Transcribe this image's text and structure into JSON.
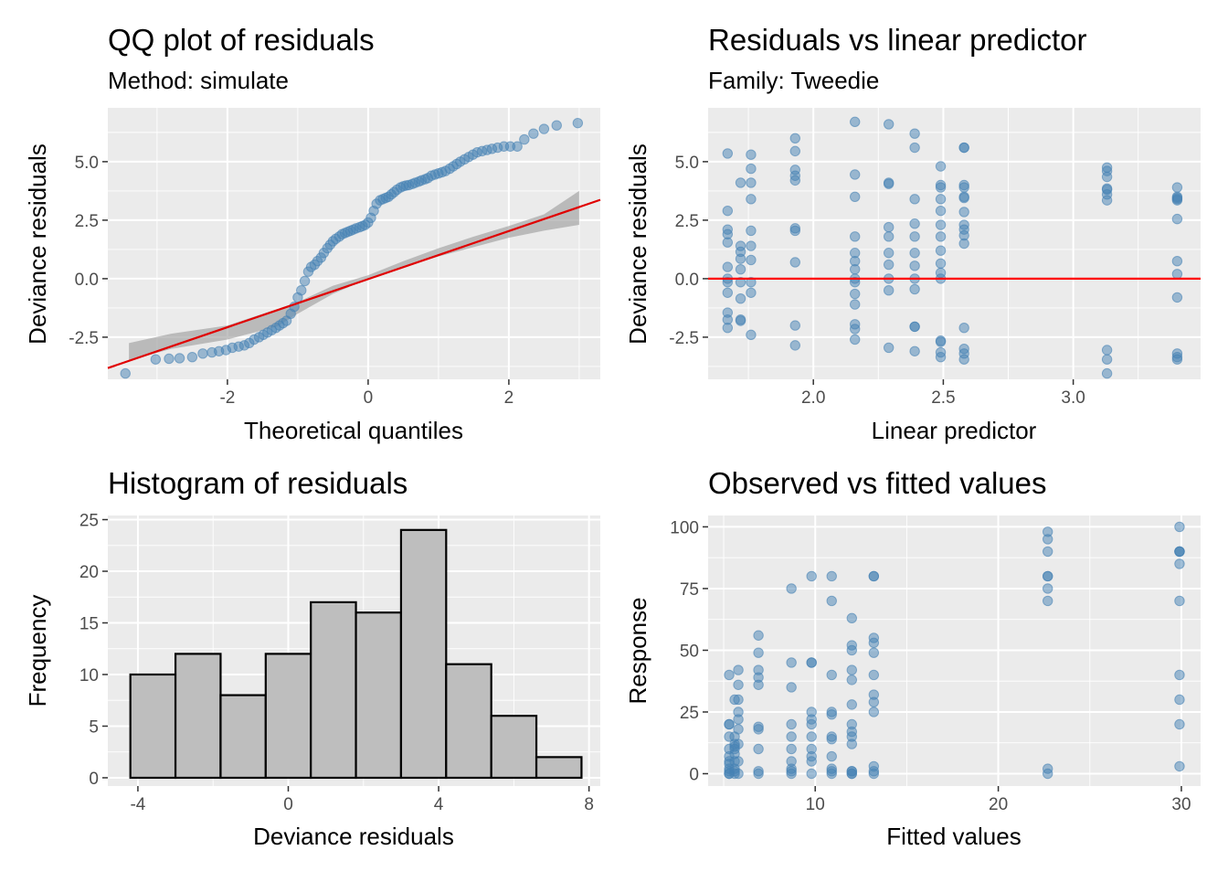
{
  "chart_data": [
    {
      "type": "scatter",
      "id": "qq",
      "title": "QQ plot of residuals",
      "subtitle": "Method: simulate",
      "xlabel": "Theoretical quantiles",
      "ylabel": "Deviance residuals",
      "xlim": [
        -3.7,
        3.3
      ],
      "ylim": [
        -4.3,
        7.3
      ],
      "xticks": [
        -2,
        0,
        2
      ],
      "xtick_labels": [
        "-2",
        "0",
        "2"
      ],
      "yticks": [
        -2.5,
        0,
        2.5,
        5
      ],
      "ytick_labels": [
        "-2.5",
        "0.0",
        "2.5",
        "5.0"
      ],
      "grid": true,
      "reference_line": {
        "x": [
          -3.7,
          3.3
        ],
        "y": [
          -3.82,
          3.37
        ],
        "color": "#e00000"
      },
      "band": {
        "x": [
          -3.4,
          -2.8,
          -2.0,
          -1.3,
          -1.0,
          -0.5,
          0.0,
          0.5,
          1.0,
          1.5,
          2.0,
          2.5,
          3.0
        ],
        "lower": [
          -3.5,
          -3.0,
          -2.6,
          -2.05,
          -1.5,
          -0.65,
          0.0,
          0.5,
          0.95,
          1.35,
          1.75,
          2.05,
          2.3
        ],
        "upper": [
          -2.75,
          -2.35,
          -2.0,
          -1.3,
          -1.0,
          -0.3,
          0.15,
          0.75,
          1.3,
          1.8,
          2.25,
          2.75,
          3.75
        ]
      },
      "series": [
        {
          "color": "#4682b4",
          "x": [
            -3.45,
            -3.02,
            -2.83,
            -2.68,
            -2.5,
            -2.35,
            -2.22,
            -2.12,
            -2.02,
            -1.93,
            -1.84,
            -1.76,
            -1.69,
            -1.62,
            -1.55,
            -1.49,
            -1.43,
            -1.37,
            -1.31,
            -1.26,
            -1.21,
            -1.16,
            -1.1,
            -1.05,
            -1.0,
            -0.95,
            -0.9,
            -0.85,
            -0.81,
            -0.76,
            -0.72,
            -0.67,
            -0.63,
            -0.58,
            -0.54,
            -0.5,
            -0.46,
            -0.41,
            -0.37,
            -0.33,
            -0.29,
            -0.25,
            -0.21,
            -0.17,
            -0.12,
            -0.08,
            -0.04,
            0.0,
            0.04,
            0.08,
            0.12,
            0.17,
            0.21,
            0.25,
            0.29,
            0.33,
            0.37,
            0.41,
            0.46,
            0.5,
            0.54,
            0.58,
            0.63,
            0.67,
            0.72,
            0.76,
            0.81,
            0.85,
            0.9,
            0.95,
            1.0,
            1.05,
            1.1,
            1.16,
            1.21,
            1.26,
            1.31,
            1.37,
            1.43,
            1.49,
            1.55,
            1.62,
            1.69,
            1.76,
            1.84,
            1.93,
            2.02,
            2.12,
            2.22,
            2.35,
            2.5,
            2.68,
            2.98
          ],
          "y": [
            -4.05,
            -3.45,
            -3.42,
            -3.4,
            -3.35,
            -3.2,
            -3.15,
            -3.1,
            -3.05,
            -2.95,
            -2.9,
            -2.85,
            -2.75,
            -2.6,
            -2.5,
            -2.4,
            -2.3,
            -2.2,
            -2.1,
            -2.0,
            -1.9,
            -1.8,
            -1.5,
            -1.2,
            -0.8,
            -0.5,
            -0.1,
            0.3,
            0.5,
            0.6,
            0.75,
            0.9,
            1.1,
            1.3,
            1.45,
            1.6,
            1.7,
            1.8,
            1.9,
            1.95,
            2.0,
            2.05,
            2.1,
            2.15,
            2.2,
            2.25,
            2.3,
            2.4,
            2.6,
            2.9,
            3.2,
            3.35,
            3.4,
            3.45,
            3.5,
            3.6,
            3.7,
            3.8,
            3.9,
            3.95,
            3.98,
            4.0,
            4.05,
            4.1,
            4.15,
            4.2,
            4.25,
            4.3,
            4.4,
            4.45,
            4.5,
            4.55,
            4.6,
            4.7,
            4.8,
            4.9,
            5.0,
            5.1,
            5.2,
            5.3,
            5.4,
            5.45,
            5.5,
            5.55,
            5.6,
            5.65,
            5.65,
            5.65,
            5.95,
            6.2,
            6.4,
            6.55,
            6.65
          ]
        }
      ]
    },
    {
      "type": "scatter",
      "id": "rvl",
      "title": "Residuals vs linear predictor",
      "subtitle": "Family: Tweedie",
      "xlabel": "Linear predictor",
      "ylabel": "Deviance residuals",
      "xlim": [
        1.595,
        3.49
      ],
      "ylim": [
        -4.3,
        7.3
      ],
      "xticks": [
        2.0,
        2.5,
        3.0
      ],
      "xtick_labels": [
        "2.0",
        "2.5",
        "3.0"
      ],
      "yticks": [
        -2.5,
        0,
        2.5,
        5
      ],
      "ytick_labels": [
        "-2.5",
        "0.0",
        "2.5",
        "5.0"
      ],
      "grid": true,
      "reference_line": {
        "y": 0,
        "color": "#ff0000"
      },
      "series": [
        {
          "color": "#4682b4",
          "x": [
            1.67,
            1.67,
            1.67,
            1.67,
            1.67,
            1.67,
            1.67,
            1.67,
            1.67,
            1.67,
            1.67,
            1.67,
            1.72,
            1.72,
            1.72,
            1.72,
            1.72,
            1.72,
            1.72,
            1.72,
            1.72,
            1.76,
            1.76,
            1.76,
            1.76,
            1.76,
            1.76,
            1.76,
            1.76,
            1.76,
            1.76,
            1.93,
            1.93,
            1.93,
            1.93,
            1.93,
            1.93,
            1.93,
            1.93,
            1.93,
            1.93,
            2.16,
            2.16,
            2.16,
            2.16,
            2.16,
            2.16,
            2.16,
            2.16,
            2.16,
            2.16,
            2.16,
            2.16,
            2.16,
            2.16,
            2.29,
            2.29,
            2.29,
            2.29,
            2.29,
            2.29,
            2.29,
            2.29,
            2.29,
            2.29,
            2.39,
            2.39,
            2.39,
            2.39,
            2.39,
            2.39,
            2.39,
            2.39,
            2.39,
            2.39,
            2.39,
            2.39,
            2.49,
            2.49,
            2.49,
            2.49,
            2.49,
            2.49,
            2.49,
            2.49,
            2.49,
            2.49,
            2.49,
            2.49,
            2.49,
            2.49,
            2.49,
            2.58,
            2.58,
            2.58,
            2.58,
            2.58,
            2.58,
            2.58,
            2.58,
            2.58,
            2.58,
            2.58,
            2.58,
            2.58,
            2.58,
            2.58,
            3.13,
            3.13,
            3.13,
            3.13,
            3.13,
            3.13,
            3.13,
            3.13,
            3.13,
            3.13,
            3.4,
            3.4,
            3.4,
            3.4,
            3.4,
            3.4,
            3.4,
            3.4,
            3.4,
            3.4,
            3.4,
            3.4
          ],
          "y": [
            5.35,
            2.9,
            2.1,
            1.9,
            1.55,
            0.5,
            0.0,
            -0.15,
            -0.6,
            -1.45,
            -1.75,
            -2.1,
            4.1,
            1.4,
            1.15,
            0.85,
            0.4,
            -0.15,
            -0.85,
            -1.75,
            -1.8,
            5.3,
            4.7,
            4.1,
            3.4,
            2.05,
            1.4,
            0.8,
            -0.15,
            -0.6,
            -2.4,
            6.0,
            5.45,
            4.65,
            4.4,
            4.2,
            2.15,
            2.05,
            0.7,
            -2.0,
            -2.85,
            6.7,
            4.45,
            3.5,
            1.8,
            1.1,
            0.75,
            0.4,
            0.0,
            -0.15,
            -0.65,
            -1.1,
            -1.95,
            -2.15,
            -2.6,
            6.6,
            4.05,
            4.1,
            2.2,
            1.8,
            1.1,
            0.6,
            0.0,
            -0.5,
            -2.95,
            6.2,
            5.6,
            3.4,
            2.35,
            1.8,
            1.1,
            0.55,
            0.0,
            -0.45,
            -2.05,
            -2.05,
            -3.1,
            4.8,
            4.0,
            3.9,
            3.4,
            2.9,
            2.3,
            1.8,
            1.2,
            0.65,
            0.25,
            0.0,
            -2.65,
            -2.7,
            -3.15,
            -3.35,
            5.6,
            5.6,
            4.0,
            3.9,
            3.5,
            3.45,
            2.85,
            2.3,
            2.1,
            1.85,
            1.5,
            -2.1,
            -3.0,
            -3.2,
            -3.45,
            4.75,
            4.6,
            4.35,
            3.85,
            3.8,
            3.6,
            3.35,
            -3.05,
            -3.45,
            -4.05,
            3.9,
            3.5,
            3.45,
            3.4,
            3.35,
            2.55,
            0.75,
            0.2,
            -0.8,
            -3.2,
            -3.35,
            -3.45
          ]
        }
      ]
    },
    {
      "type": "bar",
      "id": "hist",
      "title": "Histogram of residuals",
      "xlabel": "Deviance residuals",
      "ylabel": "Frequency",
      "bin_edges": [
        -4.2,
        -3.0,
        -1.8,
        -0.6,
        0.6,
        1.8,
        3.0,
        4.2,
        5.4,
        6.6,
        7.8
      ],
      "values": [
        10,
        12,
        8,
        12,
        17,
        16,
        24,
        11,
        6,
        2
      ],
      "xlim": [
        -4.8,
        8.3
      ],
      "ylim": [
        -0.8,
        25.4
      ],
      "xticks": [
        -4,
        0,
        4,
        8
      ],
      "xtick_labels": [
        "-4",
        "0",
        "4",
        "8"
      ],
      "yticks": [
        0,
        5,
        10,
        15,
        20,
        25
      ],
      "ytick_labels": [
        "0",
        "5",
        "10",
        "15",
        "20",
        "25"
      ],
      "grid": true,
      "bar_fill": "#bebebe",
      "bar_edge": "#000000"
    },
    {
      "type": "scatter",
      "id": "ovf",
      "title": "Observed vs fitted values",
      "xlabel": "Fitted values",
      "ylabel": "Response",
      "xlim": [
        4.15,
        31.05
      ],
      "ylim": [
        -5,
        104.6
      ],
      "xticks": [
        10,
        20,
        30
      ],
      "xtick_labels": [
        "10",
        "20",
        "30"
      ],
      "yticks": [
        0,
        25,
        50,
        75,
        100
      ],
      "ytick_labels": [
        "0",
        "25",
        "50",
        "75",
        "100"
      ],
      "grid": true,
      "series": [
        {
          "color": "#4682b4",
          "x": [
            5.3,
            5.3,
            5.3,
            5.3,
            5.3,
            5.3,
            5.3,
            5.3,
            5.3,
            5.3,
            5.3,
            5.3,
            5.6,
            5.6,
            5.6,
            5.6,
            5.6,
            5.6,
            5.6,
            5.6,
            5.6,
            5.6,
            5.8,
            5.8,
            5.8,
            5.8,
            5.8,
            5.8,
            5.8,
            5.8,
            5.8,
            6.9,
            6.9,
            6.9,
            6.9,
            6.9,
            6.9,
            6.9,
            6.9,
            6.9,
            6.9,
            8.7,
            8.7,
            8.7,
            8.7,
            8.7,
            8.7,
            8.7,
            8.7,
            8.7,
            8.7,
            9.8,
            9.8,
            9.8,
            9.8,
            9.8,
            9.8,
            9.8,
            9.8,
            9.8,
            9.8,
            9.8,
            10.9,
            10.9,
            10.9,
            10.9,
            10.9,
            10.9,
            10.9,
            10.9,
            10.9,
            10.9,
            10.9,
            12.0,
            12.0,
            12.0,
            12.0,
            12.0,
            12.0,
            12.0,
            12.0,
            12.0,
            12.0,
            12.0,
            12.0,
            12.0,
            12.0,
            13.2,
            13.2,
            13.2,
            13.2,
            13.2,
            13.2,
            13.2,
            13.2,
            13.2,
            13.2,
            13.2,
            13.2,
            22.7,
            22.7,
            22.7,
            22.7,
            22.7,
            22.7,
            22.7,
            22.7,
            22.7,
            29.9,
            29.9,
            29.9,
            29.9,
            29.9,
            29.9,
            29.9,
            29.9,
            29.9,
            29.9
          ],
          "y": [
            40,
            20,
            20,
            15,
            10,
            7,
            5,
            4,
            2,
            1,
            0,
            0,
            30,
            15,
            12,
            11,
            10,
            8,
            5,
            2,
            1,
            0,
            42,
            36,
            30,
            25,
            22,
            18,
            12,
            5,
            0,
            56,
            49,
            42,
            39,
            36,
            19,
            18,
            10,
            1,
            0,
            75,
            45,
            35,
            20,
            15,
            10,
            5,
            2,
            1,
            0,
            80,
            45,
            45,
            25,
            22,
            20,
            15,
            10,
            7,
            5,
            0,
            80,
            70,
            40,
            25,
            24,
            15,
            14,
            7,
            2,
            1,
            0,
            63,
            52,
            50,
            42,
            38,
            28,
            20,
            17,
            15,
            12,
            1,
            1,
            0,
            0,
            80,
            80,
            55,
            53,
            49,
            40,
            32,
            29,
            25,
            3,
            1,
            0,
            98,
            95,
            90,
            80,
            80,
            75,
            70,
            2,
            0,
            100,
            90,
            90,
            90,
            85,
            70,
            40,
            30,
            20,
            3
          ]
        }
      ]
    }
  ]
}
